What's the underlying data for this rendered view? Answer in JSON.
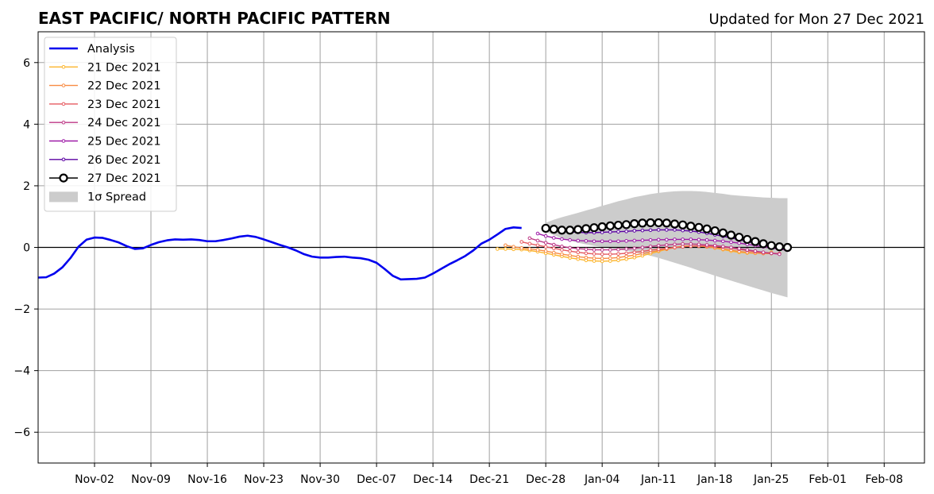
{
  "chart_data": {
    "type": "line",
    "title": "EAST PACIFIC/ NORTH PACIFIC PATTERN",
    "subtitle": "Updated for Mon 27 Dec 2021",
    "xlabel": "",
    "ylabel": "",
    "xlim": [
      "2021-10-26",
      "2022-02-13"
    ],
    "ylim": [
      -7,
      7
    ],
    "grid": true,
    "legend_position": "top-left",
    "x_tick_values": [
      "2021-11-02",
      "2021-11-09",
      "2021-11-16",
      "2021-11-23",
      "2021-11-30",
      "2021-12-07",
      "2021-12-14",
      "2021-12-21",
      "2021-12-28",
      "2022-01-04",
      "2022-01-11",
      "2022-01-18",
      "2022-01-25",
      "2022-02-01",
      "2022-02-08"
    ],
    "x_tick_labels": [
      "Nov-02",
      "Nov-09",
      "Nov-16",
      "Nov-23",
      "Nov-30",
      "Dec-07",
      "Dec-14",
      "Dec-21",
      "Dec-28",
      "Jan-04",
      "Jan-11",
      "Jan-18",
      "Jan-25",
      "Feb-01",
      "Feb-08"
    ],
    "y_ticks": [
      -6,
      -4,
      -2,
      0,
      2,
      4,
      6
    ],
    "y_tick_labels": [
      "−6",
      "−4",
      "−2",
      "0",
      "2",
      "4",
      "6"
    ],
    "analysis": {
      "name": "Analysis",
      "color": "#0000ee",
      "start": "2021-10-26",
      "values": [
        -0.98,
        -0.97,
        -0.85,
        -0.65,
        -0.35,
        0.02,
        0.25,
        0.32,
        0.31,
        0.24,
        0.16,
        0.04,
        -0.05,
        -0.03,
        0.08,
        0.17,
        0.23,
        0.26,
        0.25,
        0.26,
        0.24,
        0.2,
        0.2,
        0.24,
        0.29,
        0.35,
        0.38,
        0.34,
        0.26,
        0.17,
        0.08,
        0.0,
        -0.1,
        -0.22,
        -0.3,
        -0.33,
        -0.33,
        -0.31,
        -0.3,
        -0.33,
        -0.35,
        -0.4,
        -0.5,
        -0.7,
        -0.92,
        -1.04,
        -1.03,
        -1.02,
        -0.98,
        -0.85,
        -0.7,
        -0.55,
        -0.42,
        -0.28,
        -0.1,
        0.12,
        0.25,
        0.42,
        0.6,
        0.65,
        0.63
      ]
    },
    "forecasts": [
      {
        "name": "21 Dec 2021",
        "color": "#fcb52b",
        "start": "2021-12-22",
        "values": [
          -0.05,
          -0.05,
          -0.06,
          -0.07,
          -0.1,
          -0.14,
          -0.19,
          -0.24,
          -0.29,
          -0.34,
          -0.38,
          -0.42,
          -0.44,
          -0.45,
          -0.44,
          -0.42,
          -0.38,
          -0.33,
          -0.27,
          -0.2,
          -0.13,
          -0.06,
          0.0,
          0.04,
          0.05,
          0.05,
          0.02,
          -0.02,
          -0.07,
          -0.12,
          -0.16,
          -0.18,
          -0.19,
          -0.18,
          -0.16
        ]
      },
      {
        "name": "22 Dec 2021",
        "color": "#f88b42",
        "start": "2021-12-23",
        "values": [
          0.07,
          0.02,
          -0.02,
          -0.05,
          -0.08,
          -0.12,
          -0.17,
          -0.22,
          -0.26,
          -0.3,
          -0.33,
          -0.35,
          -0.36,
          -0.35,
          -0.33,
          -0.29,
          -0.25,
          -0.2,
          -0.15,
          -0.1,
          -0.05,
          -0.01,
          0.02,
          0.04,
          0.04,
          0.02,
          -0.01,
          -0.05,
          -0.09,
          -0.13,
          -0.16,
          -0.18,
          -0.2,
          -0.2
        ]
      },
      {
        "name": "23 Dec 2021",
        "color": "#e65a60",
        "start": "2021-12-25",
        "values": [
          0.18,
          0.12,
          0.07,
          0.02,
          -0.03,
          -0.08,
          -0.12,
          -0.16,
          -0.19,
          -0.21,
          -0.22,
          -0.22,
          -0.21,
          -0.19,
          -0.16,
          -0.13,
          -0.09,
          -0.06,
          -0.03,
          0.0,
          0.02,
          0.04,
          0.05,
          0.05,
          0.03,
          0.01,
          -0.02,
          -0.06,
          -0.1,
          -0.14,
          -0.17,
          -0.19,
          -0.2
        ]
      },
      {
        "name": "24 Dec 2021",
        "color": "#bd3786",
        "start": "2021-12-26",
        "values": [
          0.3,
          0.22,
          0.15,
          0.09,
          0.03,
          -0.01,
          -0.04,
          -0.06,
          -0.08,
          -0.08,
          -0.08,
          -0.07,
          -0.05,
          -0.03,
          0.0,
          0.03,
          0.06,
          0.08,
          0.1,
          0.11,
          0.11,
          0.1,
          0.08,
          0.06,
          0.03,
          0.0,
          -0.04,
          -0.08,
          -0.12,
          -0.16,
          -0.19,
          -0.22
        ]
      },
      {
        "name": "25 Dec 2021",
        "color": "#9e1aa8",
        "start": "2021-12-27",
        "values": [
          0.45,
          0.37,
          0.31,
          0.27,
          0.24,
          0.22,
          0.21,
          0.2,
          0.2,
          0.2,
          0.2,
          0.21,
          0.22,
          0.23,
          0.24,
          0.25,
          0.25,
          0.26,
          0.26,
          0.26,
          0.25,
          0.24,
          0.22,
          0.2,
          0.17,
          0.14,
          0.1,
          0.06,
          0.02,
          -0.02,
          -0.06,
          -0.09
        ]
      },
      {
        "name": "26 Dec 2021",
        "color": "#5b02a3",
        "start": "2021-12-28",
        "values": [
          0.58,
          0.55,
          0.52,
          0.5,
          0.49,
          0.48,
          0.48,
          0.49,
          0.5,
          0.51,
          0.52,
          0.54,
          0.55,
          0.56,
          0.57,
          0.57,
          0.57,
          0.55,
          0.53,
          0.5,
          0.46,
          0.41,
          0.36,
          0.31,
          0.25,
          0.19,
          0.13,
          0.08,
          0.03,
          -0.01
        ]
      },
      {
        "name": "27 Dec 2021",
        "color": "#000000",
        "start": "2021-12-28",
        "values": [
          0.62,
          0.59,
          0.56,
          0.56,
          0.58,
          0.61,
          0.64,
          0.67,
          0.7,
          0.72,
          0.74,
          0.77,
          0.79,
          0.8,
          0.8,
          0.79,
          0.76,
          0.73,
          0.69,
          0.65,
          0.6,
          0.54,
          0.47,
          0.4,
          0.33,
          0.26,
          0.19,
          0.12,
          0.06,
          0.02,
          0.0
        ]
      }
    ],
    "spread": {
      "name": "1σ Spread",
      "color": "#cccccc",
      "start": "2021-12-28",
      "upper": [
        0.8,
        0.9,
        0.98,
        1.05,
        1.12,
        1.2,
        1.27,
        1.35,
        1.42,
        1.5,
        1.56,
        1.63,
        1.68,
        1.73,
        1.77,
        1.8,
        1.82,
        1.83,
        1.83,
        1.82,
        1.8,
        1.77,
        1.74,
        1.7,
        1.68,
        1.66,
        1.64,
        1.62,
        1.61,
        1.6,
        1.6
      ],
      "lower": [
        0.5,
        0.4,
        0.3,
        0.22,
        0.15,
        0.1,
        0.05,
        0.01,
        -0.03,
        -0.07,
        -0.11,
        -0.16,
        -0.21,
        -0.27,
        -0.34,
        -0.42,
        -0.5,
        -0.58,
        -0.66,
        -0.75,
        -0.83,
        -0.92,
        -1.0,
        -1.08,
        -1.16,
        -1.24,
        -1.32,
        -1.4,
        -1.48,
        -1.55,
        -1.62
      ]
    }
  }
}
